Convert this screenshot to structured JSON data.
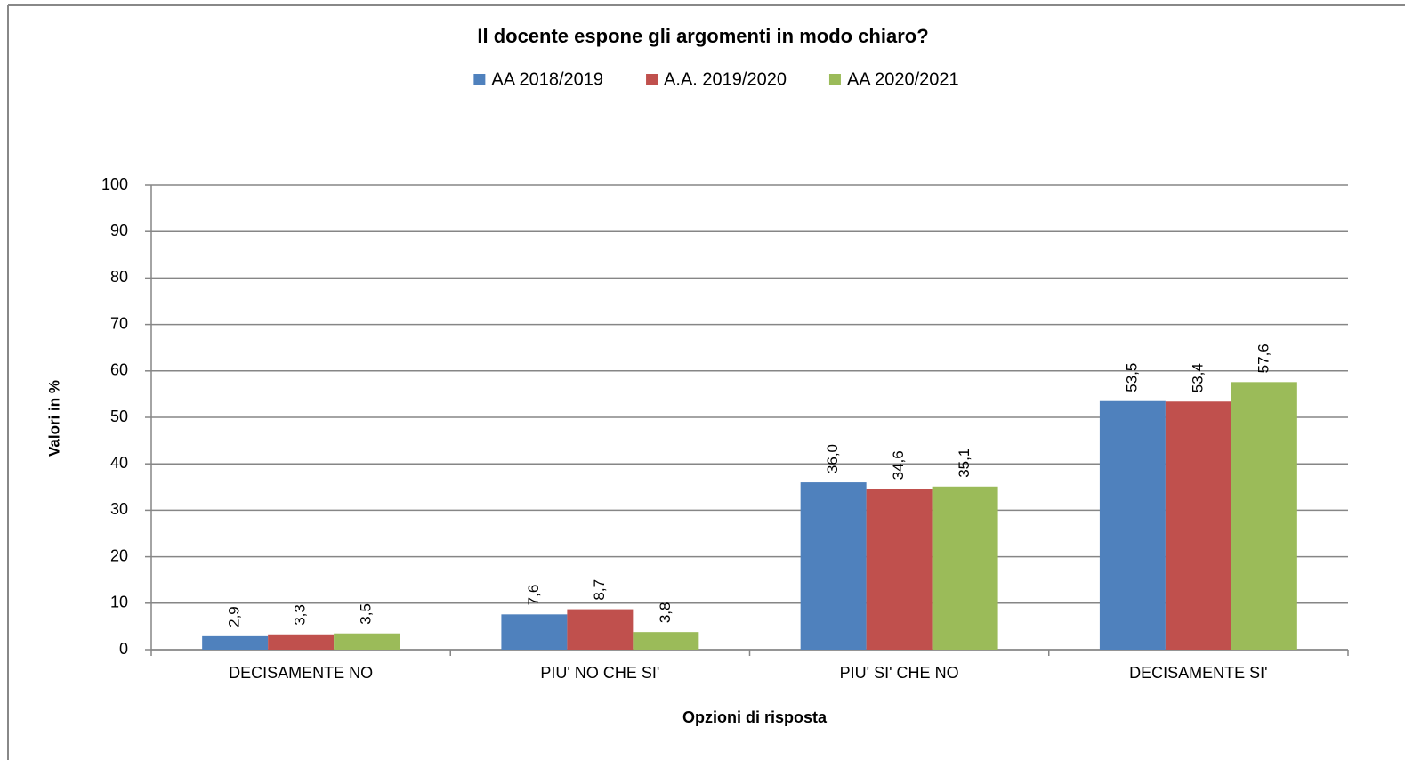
{
  "chart_data": {
    "type": "bar",
    "title": "Il docente espone gli argomenti in modo chiaro?",
    "x_label": "Opzioni di risposta",
    "y_label": "Valori in %",
    "categories": [
      "DECISAMENTE NO",
      "PIU' NO CHE SI'",
      "PIU' SI' CHE NO",
      "DECISAMENTE SI'"
    ],
    "series": [
      {
        "name": "AA 2018/2019",
        "color": "#4f81bd",
        "values": [
          2.9,
          7.6,
          36.0,
          53.5
        ],
        "value_labels": [
          "2,9",
          "7,6",
          "36,0",
          "53,5"
        ]
      },
      {
        "name": "A.A. 2019/2020",
        "color": "#c0504d",
        "values": [
          3.3,
          8.7,
          34.6,
          53.4
        ],
        "value_labels": [
          "3,3",
          "8,7",
          "34,6",
          "53,4"
        ]
      },
      {
        "name": "AA 2020/2021",
        "color": "#9bbb59",
        "values": [
          3.5,
          3.8,
          35.1,
          57.6
        ],
        "value_labels": [
          "3,5",
          "3,8",
          "35,1",
          "57,6"
        ]
      }
    ],
    "ylim": [
      0,
      100
    ],
    "yticks": [
      0,
      10,
      20,
      30,
      40,
      50,
      60,
      70,
      80,
      90,
      100
    ],
    "grid": true,
    "legend": "top"
  }
}
